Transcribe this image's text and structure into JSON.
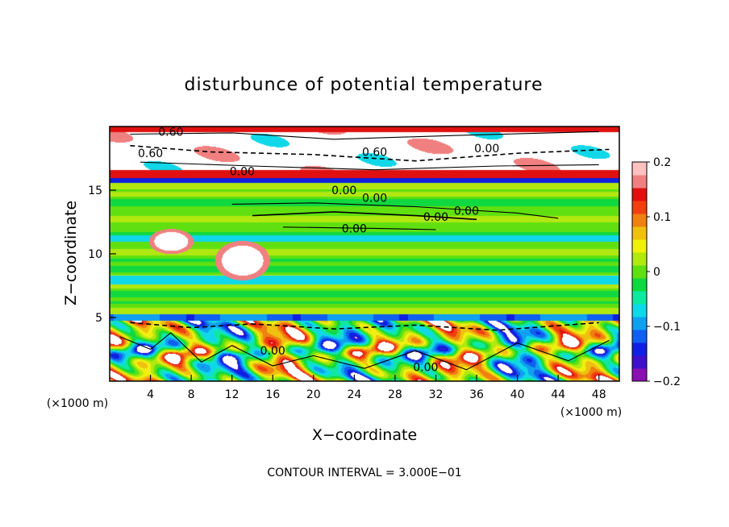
{
  "chart_data": {
    "type": "heatmap",
    "title": "disturbunce of potential temperature",
    "xlabel": "X−coordinate",
    "ylabel": "Z−coordinate",
    "x_unit_left": "(×1000 m)",
    "x_unit_right": "(×1000 m)",
    "xlim": [
      0,
      50
    ],
    "ylim": [
      0,
      20
    ],
    "x_ticks": [
      4,
      8,
      12,
      16,
      20,
      24,
      28,
      32,
      36,
      40,
      44,
      48
    ],
    "y_ticks": [
      5,
      10,
      15
    ],
    "colorbar": {
      "range": [
        -0.2,
        0.2
      ],
      "tick_values": [
        0.2,
        0.1,
        0,
        -0.1,
        -0.2
      ],
      "tick_labels": [
        "0.2",
        "0.1",
        "0",
        "−0.1",
        "−0.2"
      ],
      "colors": [
        "#8a10b0",
        "#4010c8",
        "#1020e0",
        "#1060f0",
        "#10a0f0",
        "#10d8e8",
        "#10e8a0",
        "#10d840",
        "#60e010",
        "#b0e810",
        "#f0f010",
        "#f0c010",
        "#f08010",
        "#f04010",
        "#e01010",
        "#f08080",
        "#ffc0c0"
      ]
    },
    "contour_interval_text": "CONTOUR INTERVAL = 3.000E−01",
    "contour_labels": [
      {
        "text": "0.60",
        "x": 6.0,
        "y": 19.6
      },
      {
        "text": "0.60",
        "x": 4.0,
        "y": 17.9
      },
      {
        "text": "0.60",
        "x": 26.0,
        "y": 18.0
      },
      {
        "text": "0.00",
        "x": 37.0,
        "y": 18.3
      },
      {
        "text": "0.00",
        "x": 13.0,
        "y": 16.5
      },
      {
        "text": "0.00",
        "x": 23.0,
        "y": 15.0
      },
      {
        "text": "0.00",
        "x": 26.0,
        "y": 14.4
      },
      {
        "text": "0.00",
        "x": 35.0,
        "y": 13.4
      },
      {
        "text": "0.00",
        "x": 32.0,
        "y": 12.9
      },
      {
        "text": "0.00",
        "x": 24.0,
        "y": 12.0
      },
      {
        "text": "0.00",
        "x": 16.0,
        "y": 2.4
      },
      {
        "text": "0.00",
        "x": 31.0,
        "y": 1.1
      }
    ]
  }
}
